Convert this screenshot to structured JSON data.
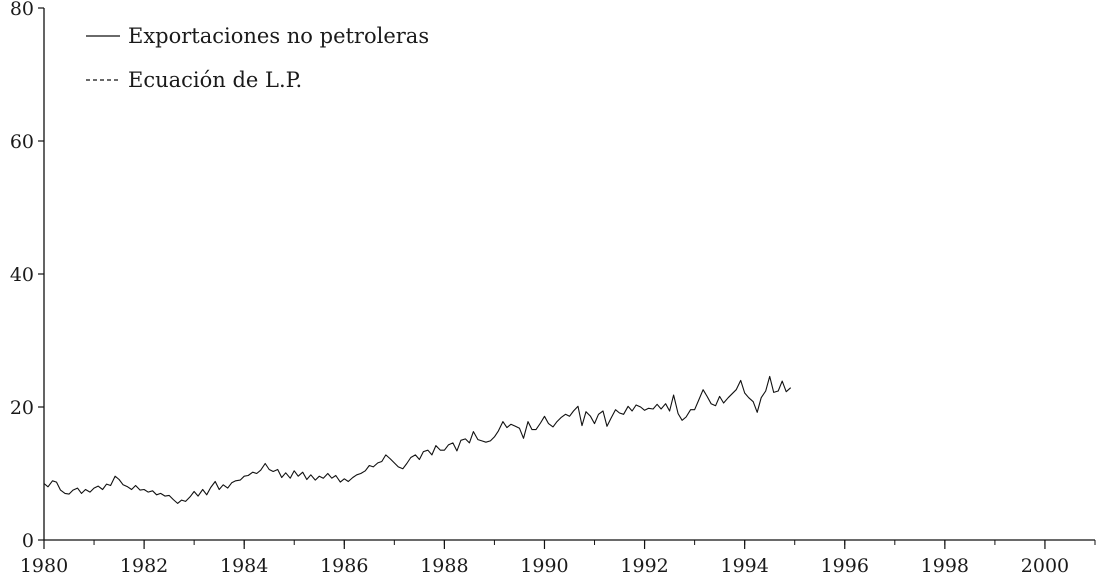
{
  "chart_data": {
    "type": "line",
    "title": "",
    "xlabel": "",
    "ylabel": "",
    "xlim": [
      1980,
      2001
    ],
    "ylim": [
      0,
      80
    ],
    "x_ticks": [
      1980,
      1982,
      1984,
      1986,
      1988,
      1990,
      1992,
      1994,
      1996,
      1998,
      2000
    ],
    "x_tick_labels": [
      "1980",
      "1982",
      "1984",
      "1986",
      "1988",
      "1990",
      "1992",
      "1994",
      "1996",
      "1998",
      "2000"
    ],
    "y_ticks": [
      0,
      20,
      40,
      60,
      80
    ],
    "y_tick_labels": [
      "0",
      "20",
      "40",
      "60",
      "80"
    ],
    "grid": false,
    "legend_position": "top-left",
    "frequency": "monthly",
    "series": [
      {
        "name": "Exportaciones no petroleras",
        "style": "solid",
        "color": "#111111",
        "points": [
          [
            1980.0,
            8.5
          ],
          [
            1980.08,
            8.0
          ],
          [
            1980.17,
            8.9
          ],
          [
            1980.25,
            8.7
          ],
          [
            1980.33,
            7.5
          ],
          [
            1980.42,
            7.0
          ],
          [
            1980.5,
            6.9
          ],
          [
            1980.58,
            7.5
          ],
          [
            1980.67,
            7.8
          ],
          [
            1980.75,
            7.0
          ],
          [
            1980.83,
            7.6
          ],
          [
            1980.92,
            7.2
          ],
          [
            1981.0,
            7.8
          ],
          [
            1981.08,
            8.1
          ],
          [
            1981.17,
            7.6
          ],
          [
            1981.25,
            8.4
          ],
          [
            1981.33,
            8.2
          ],
          [
            1981.42,
            9.6
          ],
          [
            1981.5,
            9.1
          ],
          [
            1981.58,
            8.3
          ],
          [
            1981.67,
            8.0
          ],
          [
            1981.75,
            7.6
          ],
          [
            1981.83,
            8.2
          ],
          [
            1981.92,
            7.5
          ],
          [
            1982.0,
            7.6
          ],
          [
            1982.08,
            7.2
          ],
          [
            1982.17,
            7.4
          ],
          [
            1982.25,
            6.8
          ],
          [
            1982.33,
            7.0
          ],
          [
            1982.42,
            6.6
          ],
          [
            1982.5,
            6.7
          ],
          [
            1982.58,
            6.1
          ],
          [
            1982.67,
            5.5
          ],
          [
            1982.75,
            6.0
          ],
          [
            1982.83,
            5.8
          ],
          [
            1982.92,
            6.5
          ],
          [
            1983.0,
            7.3
          ],
          [
            1983.08,
            6.6
          ],
          [
            1983.17,
            7.6
          ],
          [
            1983.25,
            6.8
          ],
          [
            1983.33,
            7.9
          ],
          [
            1983.42,
            8.8
          ],
          [
            1983.5,
            7.6
          ],
          [
            1983.58,
            8.3
          ],
          [
            1983.67,
            7.8
          ],
          [
            1983.75,
            8.6
          ],
          [
            1983.83,
            8.9
          ],
          [
            1983.92,
            9.0
          ],
          [
            1984.0,
            9.6
          ],
          [
            1984.08,
            9.7
          ],
          [
            1984.17,
            10.2
          ],
          [
            1984.25,
            10.0
          ],
          [
            1984.33,
            10.5
          ],
          [
            1984.42,
            11.5
          ],
          [
            1984.5,
            10.6
          ],
          [
            1984.58,
            10.3
          ],
          [
            1984.67,
            10.6
          ],
          [
            1984.75,
            9.4
          ],
          [
            1984.83,
            10.1
          ],
          [
            1984.92,
            9.3
          ],
          [
            1985.0,
            10.4
          ],
          [
            1985.08,
            9.6
          ],
          [
            1985.17,
            10.2
          ],
          [
            1985.25,
            9.1
          ],
          [
            1985.33,
            9.8
          ],
          [
            1985.42,
            9.0
          ],
          [
            1985.5,
            9.6
          ],
          [
            1985.58,
            9.3
          ],
          [
            1985.67,
            10.0
          ],
          [
            1985.75,
            9.3
          ],
          [
            1985.83,
            9.7
          ],
          [
            1985.92,
            8.7
          ],
          [
            1986.0,
            9.2
          ],
          [
            1986.08,
            8.8
          ],
          [
            1986.17,
            9.4
          ],
          [
            1986.25,
            9.8
          ],
          [
            1986.33,
            10.0
          ],
          [
            1986.42,
            10.4
          ],
          [
            1986.5,
            11.2
          ],
          [
            1986.58,
            11.0
          ],
          [
            1986.67,
            11.6
          ],
          [
            1986.75,
            11.8
          ],
          [
            1986.83,
            12.8
          ],
          [
            1986.92,
            12.2
          ],
          [
            1987.0,
            11.6
          ],
          [
            1987.08,
            11.0
          ],
          [
            1987.17,
            10.7
          ],
          [
            1987.25,
            11.5
          ],
          [
            1987.33,
            12.4
          ],
          [
            1987.42,
            12.8
          ],
          [
            1987.5,
            12.1
          ],
          [
            1987.58,
            13.3
          ],
          [
            1987.67,
            13.5
          ],
          [
            1987.75,
            12.8
          ],
          [
            1987.83,
            14.2
          ],
          [
            1987.92,
            13.5
          ],
          [
            1988.0,
            13.5
          ],
          [
            1988.08,
            14.3
          ],
          [
            1988.17,
            14.6
          ],
          [
            1988.25,
            13.4
          ],
          [
            1988.33,
            15.0
          ],
          [
            1988.42,
            15.2
          ],
          [
            1988.5,
            14.6
          ],
          [
            1988.58,
            16.3
          ],
          [
            1988.67,
            15.1
          ],
          [
            1988.75,
            14.9
          ],
          [
            1988.83,
            14.7
          ],
          [
            1988.92,
            14.9
          ],
          [
            1989.0,
            15.5
          ],
          [
            1989.08,
            16.4
          ],
          [
            1989.17,
            17.8
          ],
          [
            1989.25,
            16.9
          ],
          [
            1989.33,
            17.4
          ],
          [
            1989.42,
            17.1
          ],
          [
            1989.5,
            16.8
          ],
          [
            1989.58,
            15.3
          ],
          [
            1989.67,
            17.8
          ],
          [
            1989.75,
            16.6
          ],
          [
            1989.83,
            16.6
          ],
          [
            1989.92,
            17.6
          ],
          [
            1990.0,
            18.6
          ],
          [
            1990.08,
            17.5
          ],
          [
            1990.17,
            17.0
          ],
          [
            1990.25,
            17.8
          ],
          [
            1990.33,
            18.4
          ],
          [
            1990.42,
            18.9
          ],
          [
            1990.5,
            18.6
          ],
          [
            1990.58,
            19.4
          ],
          [
            1990.67,
            20.1
          ],
          [
            1990.75,
            17.2
          ],
          [
            1990.83,
            19.3
          ],
          [
            1990.92,
            18.6
          ],
          [
            1991.0,
            17.5
          ],
          [
            1991.08,
            18.9
          ],
          [
            1991.17,
            19.4
          ],
          [
            1991.25,
            17.1
          ],
          [
            1991.33,
            18.3
          ],
          [
            1991.42,
            19.6
          ],
          [
            1991.5,
            19.1
          ],
          [
            1991.58,
            18.9
          ],
          [
            1991.67,
            20.1
          ],
          [
            1991.75,
            19.4
          ],
          [
            1991.83,
            20.3
          ],
          [
            1991.92,
            20.0
          ],
          [
            1992.0,
            19.5
          ],
          [
            1992.08,
            19.8
          ],
          [
            1992.17,
            19.7
          ],
          [
            1992.25,
            20.4
          ],
          [
            1992.33,
            19.7
          ],
          [
            1992.42,
            20.5
          ],
          [
            1992.5,
            19.4
          ],
          [
            1992.58,
            21.8
          ],
          [
            1992.67,
            19.0
          ],
          [
            1992.75,
            18.0
          ],
          [
            1992.83,
            18.5
          ],
          [
            1992.92,
            19.6
          ],
          [
            1993.0,
            19.6
          ],
          [
            1993.08,
            21.0
          ],
          [
            1993.17,
            22.6
          ],
          [
            1993.25,
            21.6
          ],
          [
            1993.33,
            20.5
          ],
          [
            1993.42,
            20.2
          ],
          [
            1993.5,
            21.6
          ],
          [
            1993.58,
            20.6
          ],
          [
            1993.67,
            21.4
          ],
          [
            1993.75,
            22.0
          ],
          [
            1993.83,
            22.6
          ],
          [
            1993.92,
            24.0
          ],
          [
            1994.0,
            22.1
          ],
          [
            1994.08,
            21.4
          ],
          [
            1994.17,
            20.8
          ],
          [
            1994.25,
            19.2
          ],
          [
            1994.33,
            21.4
          ],
          [
            1994.42,
            22.4
          ],
          [
            1994.5,
            24.6
          ],
          [
            1994.58,
            22.2
          ],
          [
            1994.67,
            22.4
          ],
          [
            1994.75,
            23.9
          ],
          [
            1994.83,
            22.3
          ],
          [
            1994.92,
            22.9
          ]
        ]
      },
      {
        "name": "Ecuación de L.P.",
        "style": "dashed",
        "color": "#111111",
        "points": []
      }
    ]
  }
}
